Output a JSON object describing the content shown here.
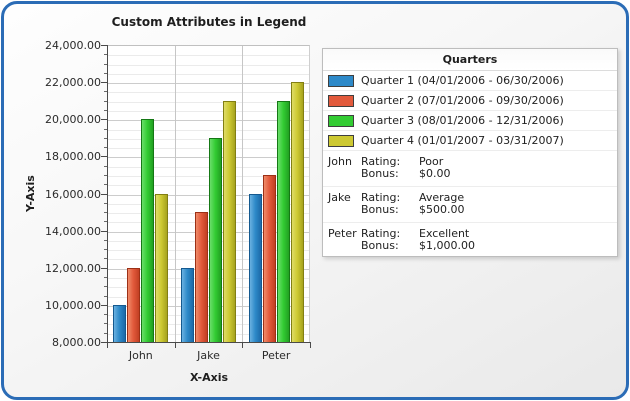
{
  "window": {
    "frame_border_color": "#2b6cb6"
  },
  "chart_data": {
    "type": "bar",
    "title": "Custom Attributes in Legend",
    "xlabel": "X-Axis",
    "ylabel": "Y-Axis",
    "categories": [
      "John",
      "Jake",
      "Peter"
    ],
    "series": [
      {
        "name": "Quarter 1 (04/01/2006 - 06/30/2006)",
        "color": "#2e8ac9",
        "color_light": "#6ab1e0",
        "color_dark": "#1c6aa8",
        "color_border": "#14598f",
        "values": [
          10000,
          12000,
          16000
        ]
      },
      {
        "name": "Quarter 2 (07/01/2006 - 09/30/2006)",
        "color": "#e25a3c",
        "color_light": "#ef8b69",
        "color_dark": "#c23f23",
        "color_border": "#9c3016",
        "values": [
          12000,
          15000,
          17000
        ]
      },
      {
        "name": "Quarter 3 (08/01/2006 - 12/31/2006)",
        "color": "#33cc33",
        "color_light": "#6ade6a",
        "color_dark": "#21a021",
        "color_border": "#157815",
        "values": [
          20000,
          19000,
          21000
        ]
      },
      {
        "name": "Quarter 4 (01/01/2007 - 03/31/2007)",
        "color": "#cdc932",
        "color_light": "#dfdc67",
        "color_dark": "#a6a31e",
        "color_border": "#827f12",
        "values": [
          16000,
          21000,
          22000
        ]
      }
    ],
    "ylim": [
      8000,
      24000
    ],
    "y_major_step": 2000,
    "y_minor_step": 500,
    "y_tick_labels": [
      "8,000.00",
      "10,000.00",
      "12,000.00",
      "14,000.00",
      "16,000.00",
      "18,000.00",
      "20,000.00",
      "22,000.00",
      "24,000.00"
    ],
    "grid": "horizontal major+minor, vertical category separators",
    "legend_position": "right-panel"
  },
  "legend": {
    "title": "Quarters",
    "labels": {
      "rating": "Rating:",
      "bonus": "Bonus:"
    },
    "attributes": [
      {
        "name": "John",
        "rating": "Poor",
        "bonus": "$0.00"
      },
      {
        "name": "Jake",
        "rating": "Average",
        "bonus": "$500.00"
      },
      {
        "name": "Peter",
        "rating": "Excellent",
        "bonus": "$1,000.00"
      }
    ]
  }
}
